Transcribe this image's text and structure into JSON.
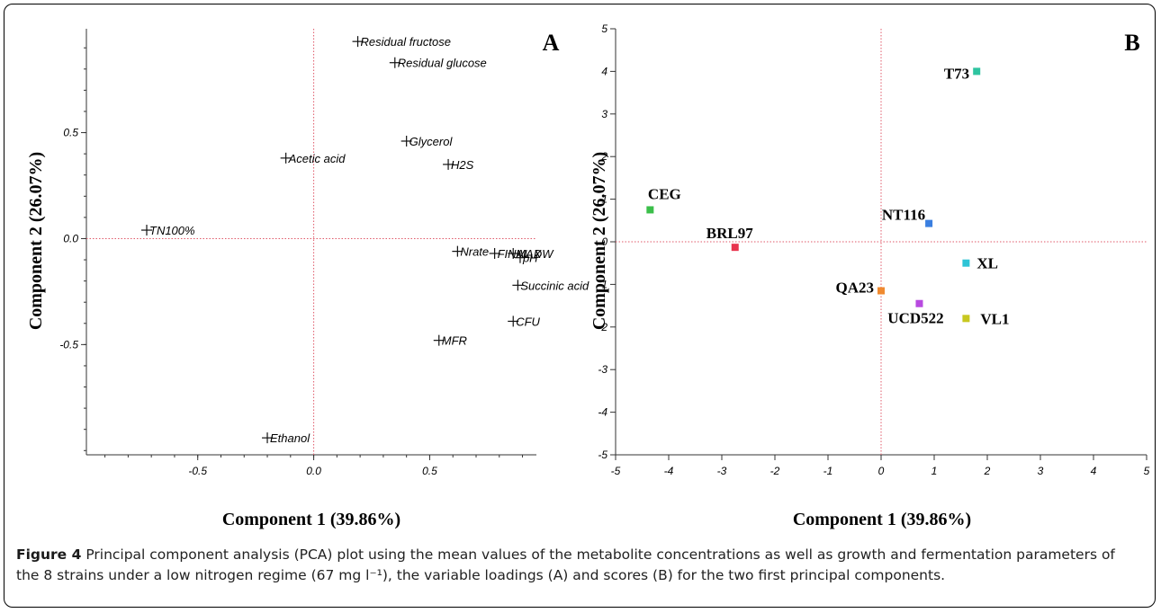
{
  "figure": {
    "caption_label": "Figure 4",
    "caption_text": "Principal component analysis (PCA) plot using the mean values of the metabolite concentrations as well as growth and fermentation parameters of the 8 strains under a low nitrogen regime (67 mg l⁻¹), the variable loadings (A) and scores (B) for the two first principal components."
  },
  "chart_data": [
    {
      "type": "scatter",
      "panel_label": "A",
      "xlabel": "Component 1 (39.86%)",
      "ylabel": "Component 2 (26.07%)",
      "xlim": [
        -1.0,
        1.0
      ],
      "ylim": [
        -1.0,
        1.0
      ],
      "x_ticks": [
        -0.5,
        0.0,
        0.5
      ],
      "x_tick_labels": [
        "-0.5",
        "0.0",
        "0.5"
      ],
      "y_ticks": [
        -0.5,
        0.0,
        0.5
      ],
      "y_tick_labels": [
        "-0.5",
        "0.0",
        "0.5"
      ],
      "reference_lines": {
        "x": 0,
        "y": 0,
        "color": "#e05a6a",
        "style": "dotted"
      },
      "marker": "plus",
      "points": [
        {
          "label": "Residual fructose",
          "x": 0.19,
          "y": 0.93
        },
        {
          "label": "Residual glucose",
          "x": 0.35,
          "y": 0.83
        },
        {
          "label": "Glycerol",
          "x": 0.4,
          "y": 0.46
        },
        {
          "label": "Acetic acid",
          "x": -0.12,
          "y": 0.38
        },
        {
          "label": "H2S",
          "x": 0.58,
          "y": 0.35
        },
        {
          "label": "TN100%",
          "x": -0.72,
          "y": 0.04
        },
        {
          "label": "Nrate",
          "x": 0.62,
          "y": -0.06
        },
        {
          "label": "FINAL DW",
          "x": 0.78,
          "y": -0.07
        },
        {
          "label": "MAX",
          "x": 0.86,
          "y": -0.07
        },
        {
          "label": "pH",
          "x": 0.89,
          "y": -0.09
        },
        {
          "label": "Succinic acid",
          "x": 0.88,
          "y": -0.22
        },
        {
          "label": "CFU",
          "x": 0.86,
          "y": -0.39
        },
        {
          "label": "MFR",
          "x": 0.54,
          "y": -0.48
        },
        {
          "label": "Ethanol",
          "x": -0.2,
          "y": -0.94
        }
      ]
    },
    {
      "type": "scatter",
      "panel_label": "B",
      "xlabel": "Component 1 (39.86%)",
      "ylabel": "Component 2 (26.07%)",
      "xlim": [
        -5,
        5
      ],
      "ylim": [
        -5,
        5
      ],
      "x_ticks": [
        -5,
        -4,
        -3,
        -2,
        -1,
        0,
        1,
        2,
        3,
        4,
        5
      ],
      "y_ticks": [
        -5,
        -4,
        -3,
        -2,
        -1,
        0,
        1,
        2,
        3,
        4,
        5
      ],
      "reference_lines": {
        "x": 0,
        "y": 0,
        "color": "#e05a6a",
        "style": "dotted"
      },
      "marker": "square",
      "points": [
        {
          "label": "T73",
          "x": 1.8,
          "y": 4.0,
          "color": "#2ec4a0"
        },
        {
          "label": "CEG",
          "x": -4.35,
          "y": 0.75,
          "color": "#3bbf4a"
        },
        {
          "label": "NT116",
          "x": 0.9,
          "y": 0.43,
          "color": "#3a7fe0"
        },
        {
          "label": "BRL97",
          "x": -2.75,
          "y": -0.13,
          "color": "#e8344e"
        },
        {
          "label": "XL",
          "x": 1.6,
          "y": -0.5,
          "color": "#2ec4d6"
        },
        {
          "label": "QA23",
          "x": 0.0,
          "y": -1.15,
          "color": "#f08a30"
        },
        {
          "label": "UCD522",
          "x": 0.72,
          "y": -1.45,
          "color": "#b84ae0"
        },
        {
          "label": "VL1",
          "x": 1.6,
          "y": -1.8,
          "color": "#c8c820"
        }
      ]
    }
  ]
}
